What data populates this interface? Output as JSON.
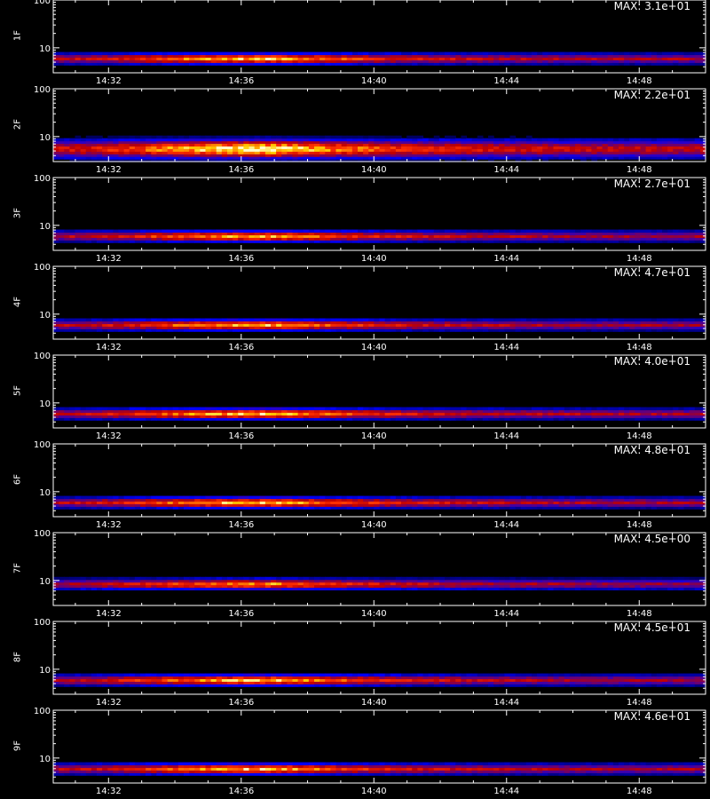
{
  "chart_data": {
    "type": "heatmap",
    "x_axis": {
      "ticks": [
        "14:32",
        "14:36",
        "14:40",
        "14:44",
        "14:48"
      ],
      "range": [
        "14:30:20",
        "14:50:00"
      ]
    },
    "y_axis": {
      "ticks": [
        "10",
        "100"
      ],
      "scale": "log",
      "range": [
        3,
        100
      ]
    },
    "colormap": [
      "#000000",
      "#0000ff",
      "#c00000",
      "#ff3000",
      "#ffd000",
      "#ffffcc"
    ],
    "panels": [
      {
        "label": "1F",
        "max": "MAX: 3.1e+01",
        "band_center": 6.0,
        "band_width": 0.5,
        "peak_time": "14:37:00",
        "rel_intensity": 0.85
      },
      {
        "label": "2F",
        "max": "MAX: 2.2e+01",
        "band_center": 5.6,
        "band_width": 0.9,
        "peak_time": "14:37:00",
        "rel_intensity": 1.0
      },
      {
        "label": "3F",
        "max": "MAX: 2.7e+01",
        "band_center": 6.0,
        "band_width": 0.5,
        "peak_time": "14:37:00",
        "rel_intensity": 0.8
      },
      {
        "label": "4F",
        "max": "MAX: 4.7e+01",
        "band_center": 6.0,
        "band_width": 0.5,
        "peak_time": "14:37:00",
        "rel_intensity": 0.8
      },
      {
        "label": "5F",
        "max": "MAX: 4.0e+01",
        "band_center": 6.0,
        "band_width": 0.5,
        "peak_time": "14:37:00",
        "rel_intensity": 0.85
      },
      {
        "label": "6F",
        "max": "MAX: 4.8e+01",
        "band_center": 6.0,
        "band_width": 0.5,
        "peak_time": "14:37:00",
        "rel_intensity": 0.85
      },
      {
        "label": "7F",
        "max": "MAX: 4.5e+00",
        "band_center": 8.5,
        "band_width": 0.5,
        "peak_time": "14:37:00",
        "rel_intensity": 0.75
      },
      {
        "label": "8F",
        "max": "MAX: 4.5e+01",
        "band_center": 6.0,
        "band_width": 0.5,
        "peak_time": "14:37:00",
        "rel_intensity": 0.85
      },
      {
        "label": "9F",
        "max": "MAX: 4.6e+01",
        "band_center": 6.0,
        "band_width": 0.5,
        "peak_time": "14:37:00",
        "rel_intensity": 0.85
      }
    ]
  }
}
